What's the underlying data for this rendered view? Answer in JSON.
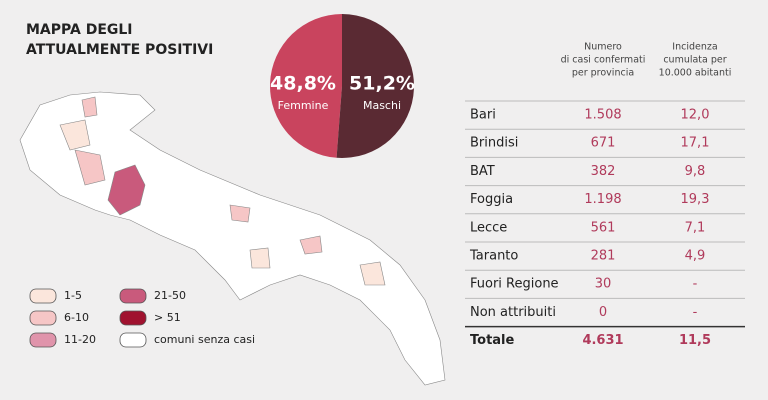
{
  "title": [
    "MAPPA DEGLI",
    "ATTUALMENTE POSITIVI"
  ],
  "chart_data": {
    "type": "pie",
    "categories": [
      "Femmine",
      "Maschi"
    ],
    "values": [
      48.8,
      51.2
    ],
    "value_labels": [
      "48,8%",
      "51,2%"
    ],
    "colors": [
      "#c9445e",
      "#5a2a33"
    ]
  },
  "legend": {
    "items": [
      {
        "label": "1-5",
        "color": "#fbe6dc"
      },
      {
        "label": "6-10",
        "color": "#f6c6c6"
      },
      {
        "label": "11-20",
        "color": "#e094ab"
      },
      {
        "label": "21-50",
        "color": "#c95a7c"
      },
      {
        "label": "> 51",
        "color": "#a0122f"
      },
      {
        "label": "comuni senza casi",
        "color": "#ffffff"
      }
    ]
  },
  "table": {
    "headers": [
      [
        "Numero",
        "di casi confermati",
        "per provincia"
      ],
      [
        "Incidenza",
        "cumulata per",
        "10.000 abitanti"
      ]
    ],
    "rows": [
      [
        "Bari",
        "1.508",
        "12,0"
      ],
      [
        "Brindisi",
        "671",
        "17,1"
      ],
      [
        "BAT",
        "382",
        "9,8"
      ],
      [
        "Foggia",
        "1.198",
        "19,3"
      ],
      [
        "Lecce",
        "561",
        "7,1"
      ],
      [
        "Taranto",
        "281",
        "4,9"
      ],
      [
        "Fuori Regione",
        "30",
        "-"
      ],
      [
        "Non attribuiti",
        "0",
        "-"
      ],
      [
        "Totale",
        "4.631",
        "11,5"
      ]
    ]
  }
}
